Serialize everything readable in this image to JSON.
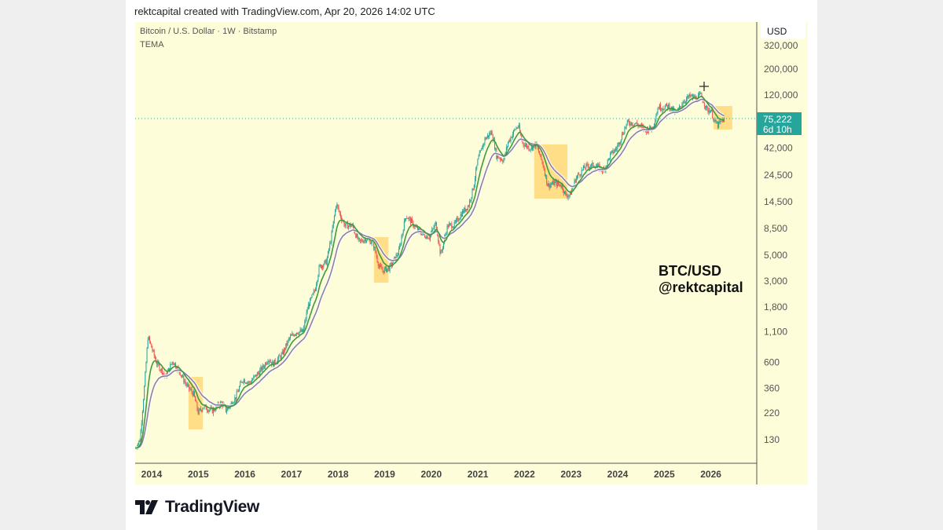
{
  "header": {
    "credit": "rektcapital created with TradingView.com, Apr 20, 2026 14:02 UTC"
  },
  "legend": {
    "symbol": "Bitcoin / U.S. Dollar · 1W · Bitstamp",
    "indicator": "TEMA"
  },
  "watermark": {
    "line1": "BTC/USD",
    "line2": "@rektcapital"
  },
  "footer": {
    "logo_text": "TradingView"
  },
  "colors": {
    "background": "#fefdd9",
    "up": "#26a69a",
    "down": "#ef5350",
    "tema_fast": "#3f9a3f",
    "tema_slow": "#8b7fa6",
    "highlight": "#ffd36b",
    "price_tag": "#26a69a"
  },
  "chart_data": {
    "type": "candlestick",
    "title": "Bitcoin / U.S. Dollar · 1W · Bitstamp",
    "scale": "log",
    "currency": "USD",
    "ylim": [
      90,
      400000
    ],
    "xlim": [
      2013.65,
      2026.95
    ],
    "y_ticks": [
      "320,000",
      "200,000",
      "120,000",
      "42,000",
      "24,500",
      "14,500",
      "8,500",
      "5,000",
      "3,000",
      "1,800",
      "1,100",
      "600",
      "360",
      "220",
      "130"
    ],
    "y_tick_values": [
      320000,
      200000,
      120000,
      42000,
      24500,
      14500,
      8500,
      5000,
      3000,
      1800,
      1100,
      600,
      360,
      220,
      130
    ],
    "x_ticks": [
      "2014",
      "2015",
      "2016",
      "2017",
      "2018",
      "2019",
      "2020",
      "2021",
      "2022",
      "2023",
      "2024",
      "2025",
      "2026"
    ],
    "last_price": {
      "value": "75,222",
      "countdown": "6d 10h",
      "numeric": 75222
    },
    "price_path": [
      [
        2013.65,
        110
      ],
      [
        2013.75,
        130
      ],
      [
        2013.85,
        400
      ],
      [
        2013.92,
        1000
      ],
      [
        2014.0,
        800
      ],
      [
        2014.1,
        600
      ],
      [
        2014.3,
        450
      ],
      [
        2014.45,
        620
      ],
      [
        2014.6,
        500
      ],
      [
        2014.75,
        380
      ],
      [
        2014.9,
        320
      ],
      [
        2015.0,
        220
      ],
      [
        2015.1,
        250
      ],
      [
        2015.3,
        230
      ],
      [
        2015.5,
        270
      ],
      [
        2015.6,
        230
      ],
      [
        2015.8,
        300
      ],
      [
        2015.95,
        430
      ],
      [
        2016.1,
        400
      ],
      [
        2016.4,
        550
      ],
      [
        2016.5,
        650
      ],
      [
        2016.6,
        580
      ],
      [
        2016.8,
        700
      ],
      [
        2016.95,
        960
      ],
      [
        2017.1,
        1100
      ],
      [
        2017.25,
        1100
      ],
      [
        2017.35,
        1800
      ],
      [
        2017.5,
        2500
      ],
      [
        2017.6,
        4000
      ],
      [
        2017.75,
        4400
      ],
      [
        2017.85,
        7000
      ],
      [
        2017.96,
        14000
      ],
      [
        2018.05,
        11000
      ],
      [
        2018.15,
        9000
      ],
      [
        2018.3,
        9000
      ],
      [
        2018.45,
        6500
      ],
      [
        2018.6,
        7000
      ],
      [
        2018.75,
        6400
      ],
      [
        2018.88,
        4000
      ],
      [
        2018.96,
        3700
      ],
      [
        2019.1,
        3900
      ],
      [
        2019.3,
        5300
      ],
      [
        2019.45,
        11000
      ],
      [
        2019.55,
        10000
      ],
      [
        2019.7,
        8300
      ],
      [
        2019.85,
        7500
      ],
      [
        2019.96,
        7200
      ],
      [
        2020.1,
        9500
      ],
      [
        2020.2,
        5000
      ],
      [
        2020.35,
        9000
      ],
      [
        2020.5,
        9200
      ],
      [
        2020.65,
        11500
      ],
      [
        2020.8,
        13500
      ],
      [
        2020.9,
        19000
      ],
      [
        2021.0,
        33000
      ],
      [
        2021.15,
        50000
      ],
      [
        2021.3,
        58000
      ],
      [
        2021.4,
        36000
      ],
      [
        2021.55,
        33000
      ],
      [
        2021.65,
        47000
      ],
      [
        2021.8,
        61000
      ],
      [
        2021.87,
        65000
      ],
      [
        2021.95,
        47000
      ],
      [
        2022.1,
        42000
      ],
      [
        2022.25,
        45000
      ],
      [
        2022.4,
        30000
      ],
      [
        2022.5,
        20000
      ],
      [
        2022.65,
        21000
      ],
      [
        2022.8,
        20000
      ],
      [
        2022.88,
        16500
      ],
      [
        2022.98,
        16600
      ],
      [
        2023.1,
        23000
      ],
      [
        2023.3,
        29000
      ],
      [
        2023.5,
        30000
      ],
      [
        2023.7,
        27000
      ],
      [
        2023.85,
        37000
      ],
      [
        2023.98,
        42000
      ],
      [
        2024.15,
        62000
      ],
      [
        2024.22,
        70000
      ],
      [
        2024.4,
        68000
      ],
      [
        2024.6,
        60000
      ],
      [
        2024.75,
        63000
      ],
      [
        2024.87,
        95000
      ],
      [
        2024.98,
        94000
      ],
      [
        2025.1,
        97000
      ],
      [
        2025.25,
        82000
      ],
      [
        2025.4,
        105000
      ],
      [
        2025.55,
        117000
      ],
      [
        2025.7,
        112000
      ],
      [
        2025.78,
        120000
      ],
      [
        2025.85,
        105000
      ],
      [
        2025.92,
        88000
      ],
      [
        2026.0,
        90000
      ],
      [
        2026.08,
        70000
      ],
      [
        2026.15,
        66000
      ],
      [
        2026.25,
        72000
      ],
      [
        2026.3,
        75222
      ]
    ],
    "highlight_boxes": [
      {
        "from": 2014.79,
        "to": 2015.1,
        "low": 159,
        "high": 450
      },
      {
        "from": 2018.77,
        "to": 2019.08,
        "low": 2910,
        "high": 7180
      },
      {
        "from": 2022.21,
        "to": 2022.92,
        "low": 15400,
        "high": 45000
      },
      {
        "from": 2026.06,
        "to": 2026.46,
        "low": 60500,
        "high": 96400
      }
    ],
    "series": [
      {
        "name": "TEMA fast",
        "color": "#3f9a3f"
      },
      {
        "name": "TEMA slow",
        "color": "#8b7fa6"
      }
    ]
  }
}
